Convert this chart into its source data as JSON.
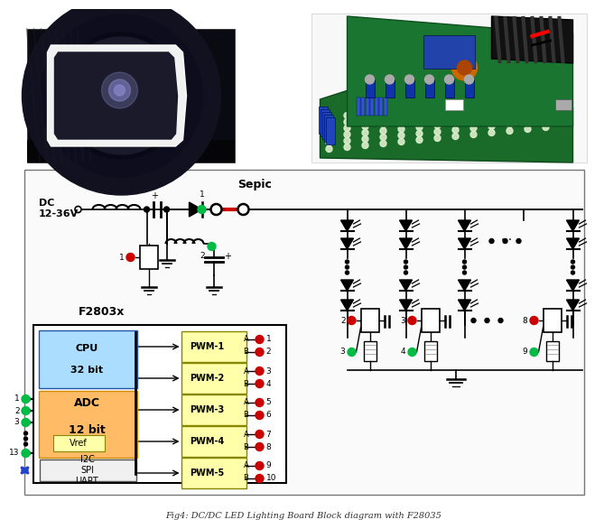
{
  "title": "Fig4: DC/DC LED Lighting Board Block diagram with F28035",
  "title_fontsize": 7,
  "title_style": "italic",
  "bg_color": "#ffffff",
  "fig_width": 6.45,
  "fig_height": 5.62,
  "circuit_label_sepic": "Sepic",
  "circuit_label_dc": "DC\n12-36V",
  "circuit_label_f2803x": "F2803x",
  "cpu_label": "CPU\n\n32 bit",
  "adc_label": "ADC\n\n12 bit",
  "vref_label": "Vref",
  "i2c_label": "I2C\nSPI\nUART",
  "pwm_labels": [
    "PWM-1",
    "PWM-2",
    "PWM-3",
    "PWM-4",
    "PWM-5"
  ],
  "cpu_color": "#aaddff",
  "adc_color": "#ffbb66",
  "vref_color": "#ffffaa",
  "pwm_color": "#ffffaa",
  "green_color": "#00bb44",
  "red_color": "#cc0000",
  "blue_color": "#2244cc",
  "line_color": "#000000",
  "red_line_color": "#cc0000",
  "circuit_bg": "#fafafa",
  "circuit_border": "#777777"
}
